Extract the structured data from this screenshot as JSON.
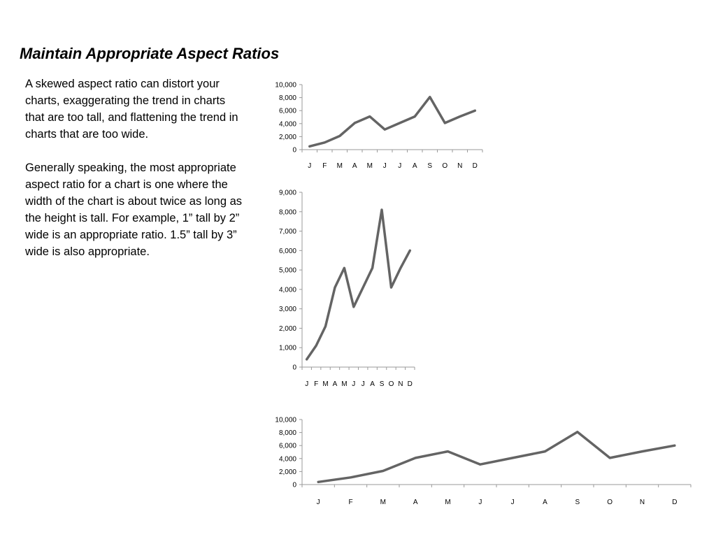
{
  "slide": {
    "title": "Maintain Appropriate Aspect Ratios",
    "paragraphs": [
      "A skewed aspect ratio can distort your charts, exaggerating the trend in charts that are too tall, and flattening the trend in charts that are too wide.",
      "Generally speaking, the most appropriate aspect ratio for a chart is one where the width of the chart is about twice as long as the height is tall.  For example, 1” tall by 2” wide is an appropriate ratio.  1.5” tall by 3” wide is also appropriate."
    ]
  },
  "chart_data": [
    {
      "type": "line",
      "categories": [
        "J",
        "F",
        "M",
        "A",
        "M",
        "J",
        "J",
        "A",
        "S",
        "O",
        "N",
        "D"
      ],
      "series": [
        {
          "values": [
            500,
            1100,
            2100,
            4100,
            5100,
            3100,
            4100,
            5100,
            8100,
            4100,
            5100,
            6000
          ]
        }
      ],
      "ylim": [
        0,
        10000
      ],
      "yticks": [
        0,
        2000,
        4000,
        6000,
        8000,
        10000
      ],
      "ytick_labels": [
        "0",
        "2,000",
        "4,000",
        "6,000",
        "8,000",
        "10,000"
      ],
      "grid": false,
      "color": "#646464"
    },
    {
      "type": "line",
      "categories": [
        "J",
        "F",
        "M",
        "A",
        "M",
        "J",
        "J",
        "A",
        "S",
        "O",
        "N",
        "D"
      ],
      "series": [
        {
          "values": [
            400,
            1100,
            2100,
            4100,
            5100,
            3100,
            4100,
            5100,
            8100,
            4100,
            5100,
            6000
          ]
        }
      ],
      "ylim": [
        0,
        9000
      ],
      "yticks": [
        0,
        1000,
        2000,
        3000,
        4000,
        5000,
        6000,
        7000,
        8000,
        9000
      ],
      "ytick_labels": [
        "0",
        "1,000",
        "2,000",
        "3,000",
        "4,000",
        "5,000",
        "6,000",
        "7,000",
        "8,000",
        "9,000"
      ],
      "grid": false,
      "color": "#646464"
    },
    {
      "type": "line",
      "categories": [
        "J",
        "F",
        "M",
        "A",
        "M",
        "J",
        "J",
        "A",
        "S",
        "O",
        "N",
        "D"
      ],
      "series": [
        {
          "values": [
            400,
            1100,
            2100,
            4100,
            5100,
            3100,
            4100,
            5100,
            8100,
            4100,
            5100,
            6000
          ]
        }
      ],
      "ylim": [
        0,
        10000
      ],
      "yticks": [
        0,
        2000,
        4000,
        6000,
        8000,
        10000
      ],
      "ytick_labels": [
        "0",
        "2,000",
        "4,000",
        "6,000",
        "8,000",
        "10,000"
      ],
      "grid": false,
      "color": "#646464"
    }
  ]
}
